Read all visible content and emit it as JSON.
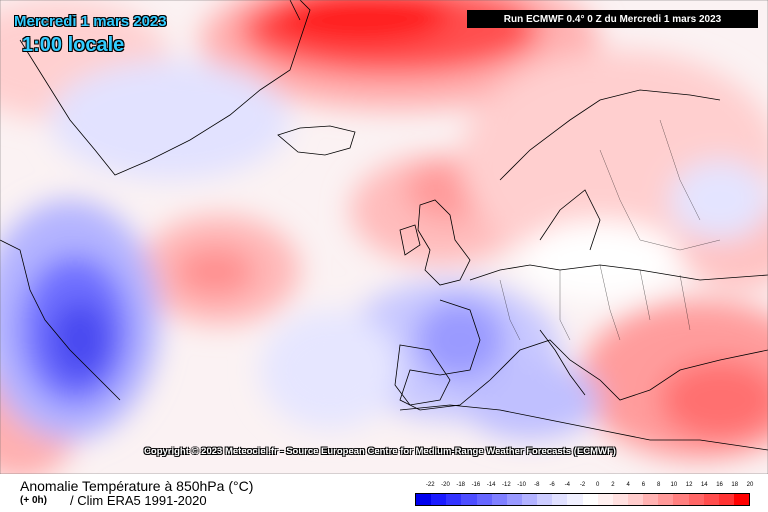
{
  "header": {
    "date": "Mercredi 1 mars 2023",
    "local_time": "1:00 locale",
    "run_info": "Run ECMWF 0.4° 0 Z du Mercredi 1 mars 2023"
  },
  "map": {
    "copyright": "Copyright © 2023 Meteociel.fr - Source European Centre for Medium-Range Weather Forecasts (ECMWF)"
  },
  "footer": {
    "title": "Anomalie Température à 850hPa (°C)",
    "lead": "(+ 0h)",
    "climatology": "/ Clim ERA5 1991-2020"
  },
  "legend": {
    "ticks": [
      "-22",
      "-20",
      "-18",
      "-16",
      "-14",
      "-12",
      "-10",
      "-8",
      "-6",
      "-4",
      "-2",
      "0",
      "2",
      "4",
      "6",
      "8",
      "10",
      "12",
      "14",
      "16",
      "18",
      "20"
    ],
    "colors": [
      "#0000ee",
      "#1a1aff",
      "#3333ff",
      "#4d4dff",
      "#6666ff",
      "#7f7fff",
      "#9999ff",
      "#b2b2ff",
      "#ccccff",
      "#e0e0ff",
      "#f0f0ff",
      "#ffffff",
      "#fff0f0",
      "#ffe0e0",
      "#ffcccc",
      "#ffb2b2",
      "#ff9999",
      "#ff7f7f",
      "#ff6666",
      "#ff4d4d",
      "#ff3333",
      "#ff0000"
    ]
  }
}
